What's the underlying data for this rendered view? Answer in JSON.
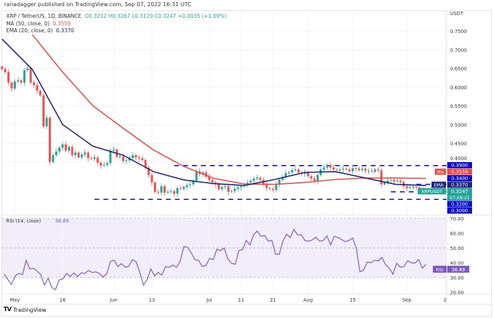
{
  "header": {
    "published": "ranadagger published on TradingView.com, Sep 07, 2022 16:31 UTC",
    "symbol": "XRP / TetherUS, 1D, BINANCE",
    "ohlc": "O0.3212  H0.3267  L0.3120  C0.3247  +0.0035 (+1.09%)",
    "ma_label": "MA (50, close, 0)",
    "ma_value": "0.3559",
    "ema_label": "EMA (20, close, 0)",
    "ema_value": "0.3370"
  },
  "footer": {
    "brand": "TradingView"
  },
  "colors": {
    "up": "#26a69a",
    "down": "#ef5350",
    "ema": "#1a237e",
    "ma": "#f04a3e",
    "levels": "#0a0ad2",
    "rsi": "#7e57c2",
    "rsi_bg": "#f1edf9"
  },
  "chart_data": [
    {
      "type": "candlestick",
      "title": "XRP / TetherUS, 1D, BINANCE",
      "currency_label": "USDT",
      "ylim": [
        0.28,
        0.77
      ],
      "y_ticks": [
        "0.7500",
        "0.7000",
        "0.6500",
        "0.6000",
        "0.5500",
        "0.5000",
        "0.4500",
        "0.4000"
      ],
      "y_tick_values": [
        0.75,
        0.7,
        0.65,
        0.6,
        0.55,
        0.5,
        0.45,
        0.4
      ],
      "x_ticks": [
        {
          "label": "May",
          "day": 4
        },
        {
          "label": "16",
          "day": 19
        },
        {
          "label": "Jun",
          "day": 35
        },
        {
          "label": "13",
          "day": 47
        },
        {
          "label": "Jul",
          "day": 65
        },
        {
          "label": "11",
          "day": 75
        },
        {
          "label": "21",
          "day": 85
        },
        {
          "label": "Aug",
          "day": 96
        },
        {
          "label": "15",
          "day": 110
        },
        {
          "label": "Sep",
          "day": 127
        },
        {
          "label": "2",
          "day": 139
        }
      ],
      "first_open": 0.655,
      "closes": [
        0.648,
        0.64,
        0.612,
        0.596,
        0.615,
        0.618,
        0.612,
        0.645,
        0.65,
        0.612,
        0.605,
        0.59,
        0.578,
        0.495,
        0.518,
        0.4,
        0.418,
        0.428,
        0.438,
        0.447,
        0.43,
        0.44,
        0.418,
        0.425,
        0.412,
        0.42,
        0.425,
        0.41,
        0.408,
        0.412,
        0.398,
        0.39,
        0.392,
        0.397,
        0.43,
        0.433,
        0.413,
        0.415,
        0.402,
        0.404,
        0.41,
        0.418,
        0.412,
        0.41,
        0.405,
        0.385,
        0.365,
        0.345,
        0.32,
        0.318,
        0.335,
        0.318,
        0.32,
        0.322,
        0.315,
        0.33,
        0.328,
        0.333,
        0.338,
        0.34,
        0.35,
        0.375,
        0.368,
        0.372,
        0.36,
        0.352,
        0.345,
        0.34,
        0.327,
        0.333,
        0.335,
        0.32,
        0.322,
        0.328,
        0.332,
        0.335,
        0.338,
        0.345,
        0.35,
        0.355,
        0.358,
        0.352,
        0.342,
        0.33,
        0.328,
        0.325,
        0.34,
        0.352,
        0.36,
        0.37,
        0.372,
        0.378,
        0.38,
        0.372,
        0.368,
        0.372,
        0.362,
        0.355,
        0.35,
        0.365,
        0.38,
        0.385,
        0.392,
        0.385,
        0.38,
        0.378,
        0.38,
        0.382,
        0.38,
        0.375,
        0.383,
        0.382,
        0.378,
        0.382,
        0.376,
        0.376,
        0.374,
        0.38,
        0.378,
        0.34,
        0.345,
        0.35,
        0.352,
        0.348,
        0.35,
        0.346,
        0.335,
        0.33,
        0.332,
        0.333,
        0.332,
        0.33,
        0.323,
        0.3247
      ],
      "ema20_samples": [
        0.728,
        0.647,
        0.5,
        0.442,
        0.418,
        0.374,
        0.352,
        0.342,
        0.337,
        0.353,
        0.372,
        0.374,
        0.357,
        0.34,
        0.337
      ],
      "ma50_samples": [
        null,
        0.74,
        0.64,
        0.55,
        0.49,
        0.432,
        0.388,
        0.356,
        0.341,
        0.34,
        0.345,
        0.353,
        0.357,
        0.357,
        0.3559
      ],
      "levels": [
        {
          "value": 0.39,
          "label": "0.3900",
          "from_day": 54
        },
        {
          "value": 0.34,
          "label": "0.3400",
          "from_day": 130
        },
        {
          "value": 0.32,
          "label": "0.3200",
          "from_day": 122
        },
        {
          "value": 0.3,
          "label": "0.3000",
          "from_day": 29
        }
      ],
      "badges": [
        {
          "tag": "MA",
          "value": "0.3559",
          "price": 0.3559,
          "color": "#f04a3e"
        },
        {
          "tag": "EMA",
          "value": "0.3370",
          "price": 0.337,
          "color": "#1a237e"
        },
        {
          "tag": "XRPUSDT",
          "value": "0.3247",
          "sub": "07:28:21",
          "price": 0.3247,
          "color": "#26a69a"
        }
      ]
    },
    {
      "type": "line",
      "title": "RSI (14, close)",
      "last_value": "38.89",
      "ylim": [
        18,
        72
      ],
      "y_ticks": [
        "70.00",
        "60.00",
        "50.00",
        "40.00",
        "30.00",
        "20.00"
      ],
      "y_tick_values": [
        70,
        60,
        50,
        40,
        30,
        20
      ],
      "bands": [
        70,
        50,
        30
      ],
      "values": [
        32.2,
        28.7,
        25.3,
        31.1,
        32.7,
        31.9,
        41.6,
        35.8,
        36.3,
        34.2,
        31.9,
        24.8,
        29.5,
        23.2,
        21.7,
        28.4,
        29.0,
        32.7,
        30.6,
        33.1,
        30.6,
        33.1,
        32.7,
        34.7,
        33.4,
        33.8,
        32.7,
        30.3,
        32.7,
        41.0,
        41.6,
        37.4,
        39.4,
        36.9,
        37.8,
        42.1,
        40.5,
        33.4,
        24.8,
        28.7,
        35.8,
        31.1,
        33.4,
        31.6,
        37.4,
        36.9,
        38.5,
        36.9,
        41.0,
        51.0,
        50.4,
        46.8,
        42.1,
        41.6,
        37.4,
        38.1,
        42.9,
        42.1,
        49.1,
        48.3,
        49.9,
        42.5,
        39.7,
        38.9,
        48.3,
        48.8,
        55.1,
        52.0,
        58.9,
        61.4,
        57.8,
        58.5,
        54.6,
        55.1,
        45.7,
        45.7,
        54.6,
        59.3,
        57.0,
        62.5,
        58.9,
        58.9,
        55.1,
        54.6,
        55.4,
        57.3,
        54.6,
        55.1,
        58.2,
        52.0,
        57.8,
        57.0,
        55.7,
        54.2,
        55.1,
        56.7,
        49.9,
        33.8,
        35.0,
        40.5,
        40.0,
        41.6,
        41.3,
        43.6,
        38.5,
        36.3,
        32.2,
        39.7,
        36.9,
        37.4,
        41.3,
        40.0,
        39.7,
        42.1,
        36.3,
        38.9
      ],
      "badge": {
        "tag": "RSI",
        "value": "38.89"
      }
    }
  ]
}
